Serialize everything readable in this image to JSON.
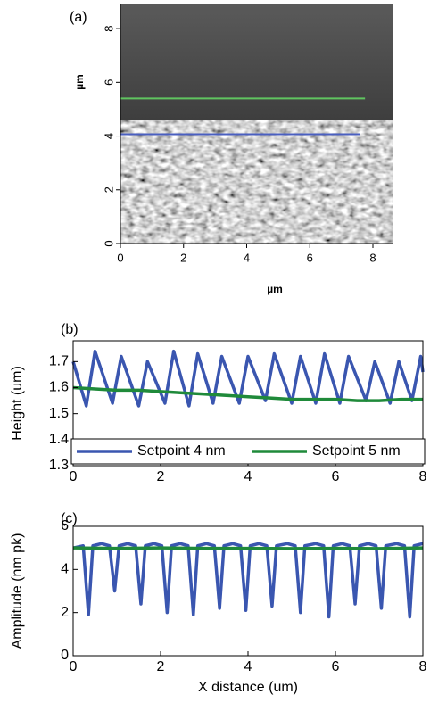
{
  "chart_data": [
    {
      "type": "image",
      "label": "(a)",
      "xlabel": "µm",
      "ylabel": "µm",
      "xlim": [
        0,
        8.65
      ],
      "ylim": [
        0,
        8.9
      ],
      "xticks": [
        0,
        2,
        4,
        6,
        8
      ],
      "yticks": [
        0,
        2,
        4,
        6,
        8
      ],
      "series": [
        {
          "color": "#5fc45f",
          "x": [
            0,
            7.75
          ],
          "values": [
            5.4,
            5.4
          ]
        },
        {
          "color": "#4a5fc0",
          "x": [
            0,
            7.6
          ],
          "values": [
            4.07,
            4.07
          ]
        }
      ]
    },
    {
      "type": "line",
      "label": "(b)",
      "ylabel": "Height (um)",
      "xlim": [
        0,
        8
      ],
      "ylim": [
        1.3,
        1.78
      ],
      "xticks": [
        0,
        2,
        4,
        6,
        8
      ],
      "yticks": [
        1.3,
        1.4,
        1.5,
        1.6,
        1.7
      ],
      "legend": "lower center",
      "series": [
        {
          "name": "Setpoint 4 nm",
          "color": "#3a56b0",
          "x": [
            0,
            0.3,
            0.5,
            0.9,
            1.1,
            1.5,
            1.7,
            2.1,
            2.3,
            2.65,
            2.85,
            3.2,
            3.4,
            3.8,
            4.0,
            4.4,
            4.6,
            5.0,
            5.2,
            5.55,
            5.75,
            6.1,
            6.3,
            6.7,
            6.9,
            7.25,
            7.45,
            7.75,
            7.95,
            8.0
          ],
          "values": [
            1.7,
            1.53,
            1.74,
            1.54,
            1.72,
            1.53,
            1.7,
            1.54,
            1.74,
            1.53,
            1.73,
            1.54,
            1.72,
            1.54,
            1.72,
            1.55,
            1.73,
            1.54,
            1.72,
            1.54,
            1.73,
            1.54,
            1.72,
            1.55,
            1.7,
            1.54,
            1.7,
            1.55,
            1.72,
            1.66
          ]
        },
        {
          "name": "Setpoint 5 nm",
          "color": "#1f8a3a",
          "x": [
            0,
            0.5,
            1,
            1.5,
            2,
            2.5,
            3,
            3.5,
            4,
            4.5,
            5,
            5.5,
            6,
            6.5,
            7,
            7.5,
            8
          ],
          "values": [
            1.6,
            1.595,
            1.59,
            1.59,
            1.585,
            1.58,
            1.575,
            1.57,
            1.565,
            1.56,
            1.555,
            1.555,
            1.555,
            1.55,
            1.55,
            1.555,
            1.555
          ]
        }
      ]
    },
    {
      "type": "line",
      "label": "(c)",
      "xlabel": "X distance (um)",
      "ylabel": "Amplitude (nm pk)",
      "xlim": [
        0,
        8
      ],
      "ylim": [
        0,
        6
      ],
      "xticks": [
        0,
        2,
        4,
        6,
        8
      ],
      "yticks": [
        0,
        2,
        4,
        6
      ],
      "series": [
        {
          "color": "#3a56b0",
          "x": [
            0,
            0.23,
            0.35,
            0.45,
            0.65,
            0.83,
            0.95,
            1.05,
            1.25,
            1.43,
            1.55,
            1.65,
            1.85,
            2.03,
            2.15,
            2.25,
            2.45,
            2.63,
            2.75,
            2.85,
            3.05,
            3.23,
            3.35,
            3.45,
            3.65,
            3.83,
            3.95,
            4.05,
            4.25,
            4.43,
            4.55,
            4.65,
            4.9,
            5.08,
            5.2,
            5.3,
            5.55,
            5.73,
            5.85,
            5.95,
            6.15,
            6.33,
            6.45,
            6.55,
            6.75,
            6.93,
            7.05,
            7.15,
            7.4,
            7.58,
            7.7,
            7.8,
            8.0
          ],
          "values": [
            5.0,
            5.1,
            1.9,
            5.1,
            5.2,
            5.1,
            3.0,
            5.1,
            5.2,
            5.1,
            2.4,
            5.1,
            5.2,
            5.1,
            2.0,
            5.1,
            5.2,
            5.1,
            1.9,
            5.1,
            5.2,
            5.1,
            2.2,
            5.1,
            5.2,
            5.1,
            2.1,
            5.1,
            5.2,
            5.1,
            2.3,
            5.1,
            5.2,
            5.1,
            2.0,
            5.1,
            5.2,
            5.1,
            1.8,
            5.1,
            5.2,
            5.1,
            2.4,
            5.1,
            5.2,
            5.1,
            2.2,
            5.1,
            5.2,
            5.1,
            1.8,
            5.1,
            5.2
          ]
        },
        {
          "color": "#1f8a3a",
          "x": [
            0,
            1,
            2,
            3,
            4,
            5,
            6,
            7,
            8
          ],
          "values": [
            5.0,
            4.98,
            5.0,
            4.98,
            4.98,
            4.97,
            4.98,
            4.97,
            5.0
          ]
        }
      ]
    }
  ]
}
